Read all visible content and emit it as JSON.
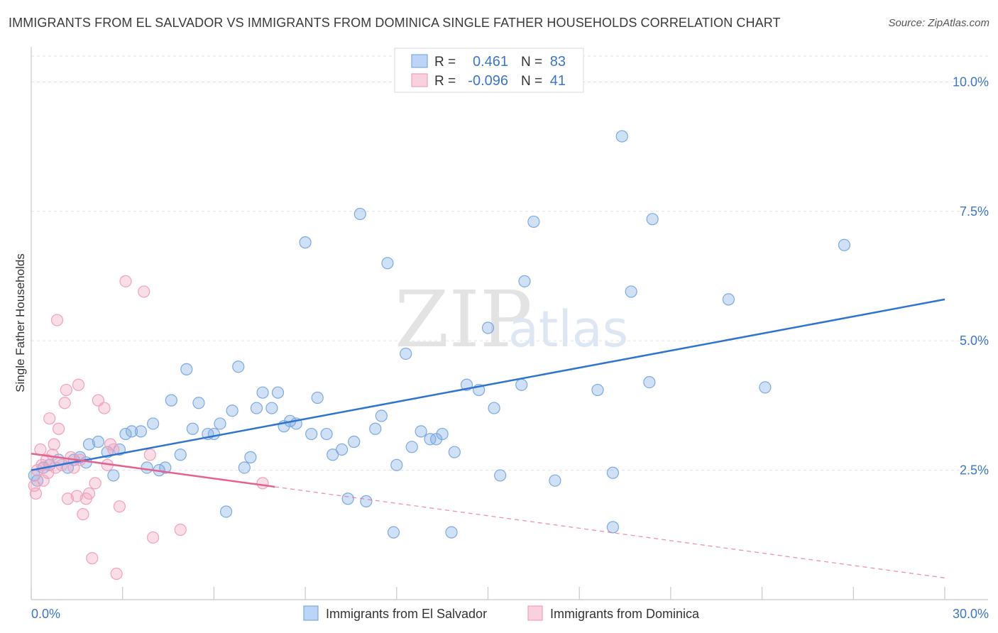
{
  "title": "IMMIGRANTS FROM EL SALVADOR VS IMMIGRANTS FROM DOMINICA SINGLE FATHER HOUSEHOLDS CORRELATION CHART",
  "source": "Source: ZipAtlas.com",
  "watermark": {
    "zip": "ZIP",
    "atlas": "atlas"
  },
  "stats": [
    {
      "r_label": "R =",
      "r_value": "0.461",
      "n_label": "N =",
      "n_value": "83",
      "color": "#7aa9e3"
    },
    {
      "r_label": "R =",
      "r_value": "-0.096",
      "n_label": "N =",
      "n_value": "41",
      "color": "#f0a1bb"
    }
  ],
  "legend": [
    {
      "label": "Immigrants from El Salvador",
      "color": "#7aa9e3"
    },
    {
      "label": "Immigrants from Dominica",
      "color": "#f0a1bb"
    }
  ],
  "chart_data": {
    "type": "scatter",
    "ylabel": "Single Father Households",
    "xlim": [
      0,
      30
    ],
    "ylim": [
      0,
      10.5
    ],
    "x_tick_labels": [
      {
        "value": 0,
        "label": "0.0%"
      },
      {
        "value": 30,
        "label": "30.0%"
      }
    ],
    "y_tick_labels": [
      {
        "value": 2.5,
        "label": "2.5%"
      },
      {
        "value": 5.0,
        "label": "5.0%"
      },
      {
        "value": 7.5,
        "label": "7.5%"
      },
      {
        "value": 10.0,
        "label": "10.0%"
      }
    ],
    "grid": true,
    "legend_position": "bottom",
    "series": [
      {
        "name": "Immigrants from El Salvador",
        "color": "#7aa9e3",
        "line_color": "#2f74cf",
        "trend": {
          "x": [
            0,
            30
          ],
          "y": [
            2.5,
            5.8
          ]
        },
        "points": [
          [
            0.2,
            2.3
          ],
          [
            0.4,
            2.55
          ],
          [
            0.6,
            2.6
          ],
          [
            0.9,
            2.7
          ],
          [
            1.2,
            2.55
          ],
          [
            1.4,
            2.7
          ],
          [
            1.6,
            2.75
          ],
          [
            1.9,
            3.0
          ],
          [
            2.2,
            3.05
          ],
          [
            2.5,
            2.85
          ],
          [
            2.7,
            2.4
          ],
          [
            2.9,
            2.9
          ],
          [
            3.1,
            3.2
          ],
          [
            3.3,
            3.25
          ],
          [
            3.6,
            3.25
          ],
          [
            3.8,
            2.55
          ],
          [
            4.0,
            3.4
          ],
          [
            4.2,
            2.5
          ],
          [
            4.4,
            2.55
          ],
          [
            4.6,
            3.85
          ],
          [
            4.9,
            2.8
          ],
          [
            5.1,
            4.45
          ],
          [
            5.3,
            3.3
          ],
          [
            5.5,
            3.8
          ],
          [
            5.8,
            3.2
          ],
          [
            6.0,
            3.2
          ],
          [
            6.2,
            3.4
          ],
          [
            6.4,
            1.7
          ],
          [
            6.6,
            3.65
          ],
          [
            6.8,
            4.5
          ],
          [
            7.0,
            2.55
          ],
          [
            7.2,
            2.75
          ],
          [
            7.4,
            3.7
          ],
          [
            7.6,
            4.0
          ],
          [
            7.9,
            3.7
          ],
          [
            8.1,
            4.0
          ],
          [
            8.3,
            3.35
          ],
          [
            8.5,
            3.45
          ],
          [
            8.7,
            3.4
          ],
          [
            9.0,
            6.9
          ],
          [
            9.2,
            3.2
          ],
          [
            9.4,
            3.9
          ],
          [
            9.7,
            3.2
          ],
          [
            9.9,
            2.8
          ],
          [
            10.2,
            2.9
          ],
          [
            10.4,
            1.95
          ],
          [
            10.6,
            3.05
          ],
          [
            10.8,
            7.45
          ],
          [
            11.0,
            1.9
          ],
          [
            11.3,
            3.3
          ],
          [
            11.5,
            3.55
          ],
          [
            11.7,
            6.5
          ],
          [
            11.9,
            1.3
          ],
          [
            12.0,
            2.6
          ],
          [
            12.3,
            4.75
          ],
          [
            12.5,
            2.95
          ],
          [
            12.8,
            3.25
          ],
          [
            13.1,
            3.1
          ],
          [
            13.3,
            3.1
          ],
          [
            13.5,
            3.2
          ],
          [
            13.8,
            1.3
          ],
          [
            13.9,
            2.85
          ],
          [
            14.3,
            4.15
          ],
          [
            14.7,
            4.05
          ],
          [
            15.0,
            5.25
          ],
          [
            15.2,
            3.7
          ],
          [
            15.4,
            2.4
          ],
          [
            16.1,
            4.15
          ],
          [
            16.2,
            6.15
          ],
          [
            16.5,
            7.3
          ],
          [
            17.2,
            2.3
          ],
          [
            18.6,
            4.05
          ],
          [
            19.1,
            1.4
          ],
          [
            19.1,
            2.45
          ],
          [
            19.4,
            8.95
          ],
          [
            19.7,
            5.95
          ],
          [
            20.3,
            4.2
          ],
          [
            20.4,
            7.35
          ],
          [
            22.9,
            5.8
          ],
          [
            24.1,
            4.1
          ],
          [
            26.7,
            6.85
          ],
          [
            0.1,
            2.4
          ],
          [
            1.8,
            2.65
          ]
        ]
      },
      {
        "name": "Immigrants from Dominica",
        "color": "#f0a1bb",
        "line_color": "#e5628f",
        "trend": {
          "x": [
            0,
            8
          ],
          "y": [
            2.82,
            2.18
          ]
        },
        "trend_extension": {
          "x": [
            8,
            30
          ],
          "y": [
            2.18,
            0.42
          ]
        },
        "points": [
          [
            0.1,
            2.2
          ],
          [
            0.15,
            2.05
          ],
          [
            0.2,
            2.5
          ],
          [
            0.3,
            2.9
          ],
          [
            0.35,
            2.6
          ],
          [
            0.4,
            2.3
          ],
          [
            0.5,
            2.7
          ],
          [
            0.55,
            2.45
          ],
          [
            0.6,
            3.5
          ],
          [
            0.7,
            2.8
          ],
          [
            0.75,
            3.0
          ],
          [
            0.8,
            2.55
          ],
          [
            0.85,
            5.4
          ],
          [
            0.9,
            3.3
          ],
          [
            1.0,
            2.6
          ],
          [
            1.1,
            3.8
          ],
          [
            1.15,
            4.05
          ],
          [
            1.2,
            1.95
          ],
          [
            1.3,
            2.75
          ],
          [
            1.4,
            2.55
          ],
          [
            1.5,
            2.0
          ],
          [
            1.55,
            4.15
          ],
          [
            1.6,
            2.7
          ],
          [
            1.7,
            1.65
          ],
          [
            1.8,
            1.95
          ],
          [
            1.9,
            2.05
          ],
          [
            2.0,
            0.8
          ],
          [
            2.1,
            2.25
          ],
          [
            2.2,
            3.85
          ],
          [
            2.4,
            3.7
          ],
          [
            2.5,
            2.6
          ],
          [
            2.6,
            3.0
          ],
          [
            2.7,
            2.9
          ],
          [
            2.8,
            0.5
          ],
          [
            2.9,
            1.8
          ],
          [
            3.1,
            6.15
          ],
          [
            3.7,
            5.95
          ],
          [
            3.9,
            2.8
          ],
          [
            4.0,
            1.2
          ],
          [
            4.9,
            1.35
          ],
          [
            7.6,
            2.25
          ]
        ]
      }
    ]
  }
}
